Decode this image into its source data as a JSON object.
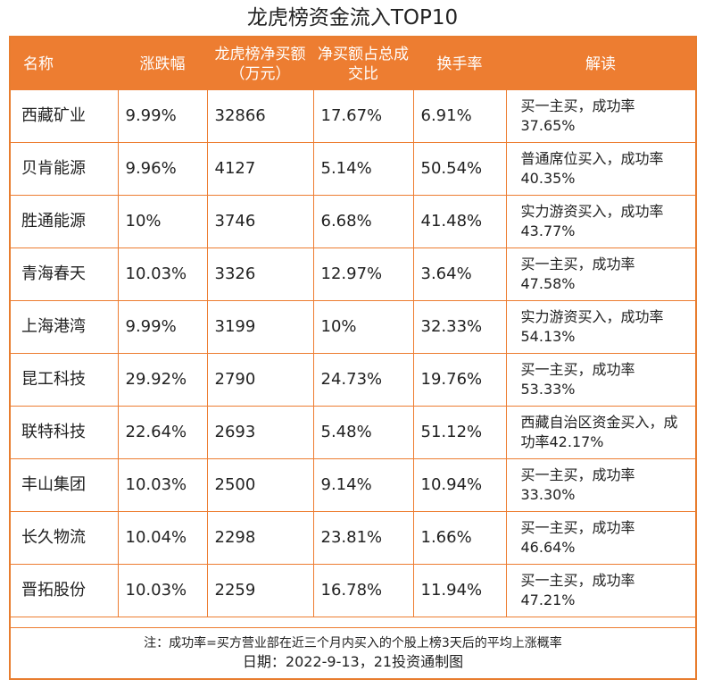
{
  "title": "龙虎榜资金流入TOP10",
  "headers": [
    "名称",
    "涨跌幅",
    "龙虎榜净买额（万元）",
    "净买额占总成交比",
    "换手率",
    "解读"
  ],
  "rows": [
    {
      "name": "西藏矿业",
      "change": "9.99%",
      "net_buy": "32866",
      "ratio": "17.67%",
      "turnover": "6.91%",
      "note": "买一主买，成功率37.65%"
    },
    {
      "name": "贝肯能源",
      "change": "9.96%",
      "net_buy": "4127",
      "ratio": "5.14%",
      "turnover": "50.54%",
      "note": "普通席位买入，成功率40.35%"
    },
    {
      "name": "胜通能源",
      "change": "10%",
      "net_buy": "3746",
      "ratio": "6.68%",
      "turnover": "41.48%",
      "note": "实力游资买入，成功率43.77%"
    },
    {
      "name": "青海春天",
      "change": "10.03%",
      "net_buy": "3326",
      "ratio": "12.97%",
      "turnover": "3.64%",
      "note": "买一主买，成功率47.58%"
    },
    {
      "name": "上海港湾",
      "change": "9.99%",
      "net_buy": "3199",
      "ratio": "10%",
      "turnover": "32.33%",
      "note": "实力游资买入，成功率54.13%"
    },
    {
      "name": "昆工科技",
      "change": "29.92%",
      "net_buy": "2790",
      "ratio": "24.73%",
      "turnover": "19.76%",
      "note": "买一主买，成功率53.33%"
    },
    {
      "name": "联特科技",
      "change": "22.64%",
      "net_buy": "2693",
      "ratio": "5.48%",
      "turnover": "51.12%",
      "note": "西藏自治区资金买入，成功率42.17%"
    },
    {
      "name": "丰山集团",
      "change": "10.03%",
      "net_buy": "2500",
      "ratio": "9.14%",
      "turnover": "10.94%",
      "note": "买一主买，成功率33.30%"
    },
    {
      "name": "长久物流",
      "change": "10.04%",
      "net_buy": "2298",
      "ratio": "23.81%",
      "turnover": "1.66%",
      "note": "买一主买，成功率46.64%"
    },
    {
      "name": "晋拓股份",
      "change": "10.03%",
      "net_buy": "2259",
      "ratio": "16.78%",
      "turnover": "11.94%",
      "note": "买一主买，成功率47.21%"
    }
  ],
  "footnote": "注：成功率=买方营业部在近三个月内买入的个股上榜3天后的平均上涨概率",
  "date_line": "日期：2022-9-13，21投资通制图",
  "colors": {
    "accent": "#ed7d31",
    "header_text": "#ffffff"
  }
}
